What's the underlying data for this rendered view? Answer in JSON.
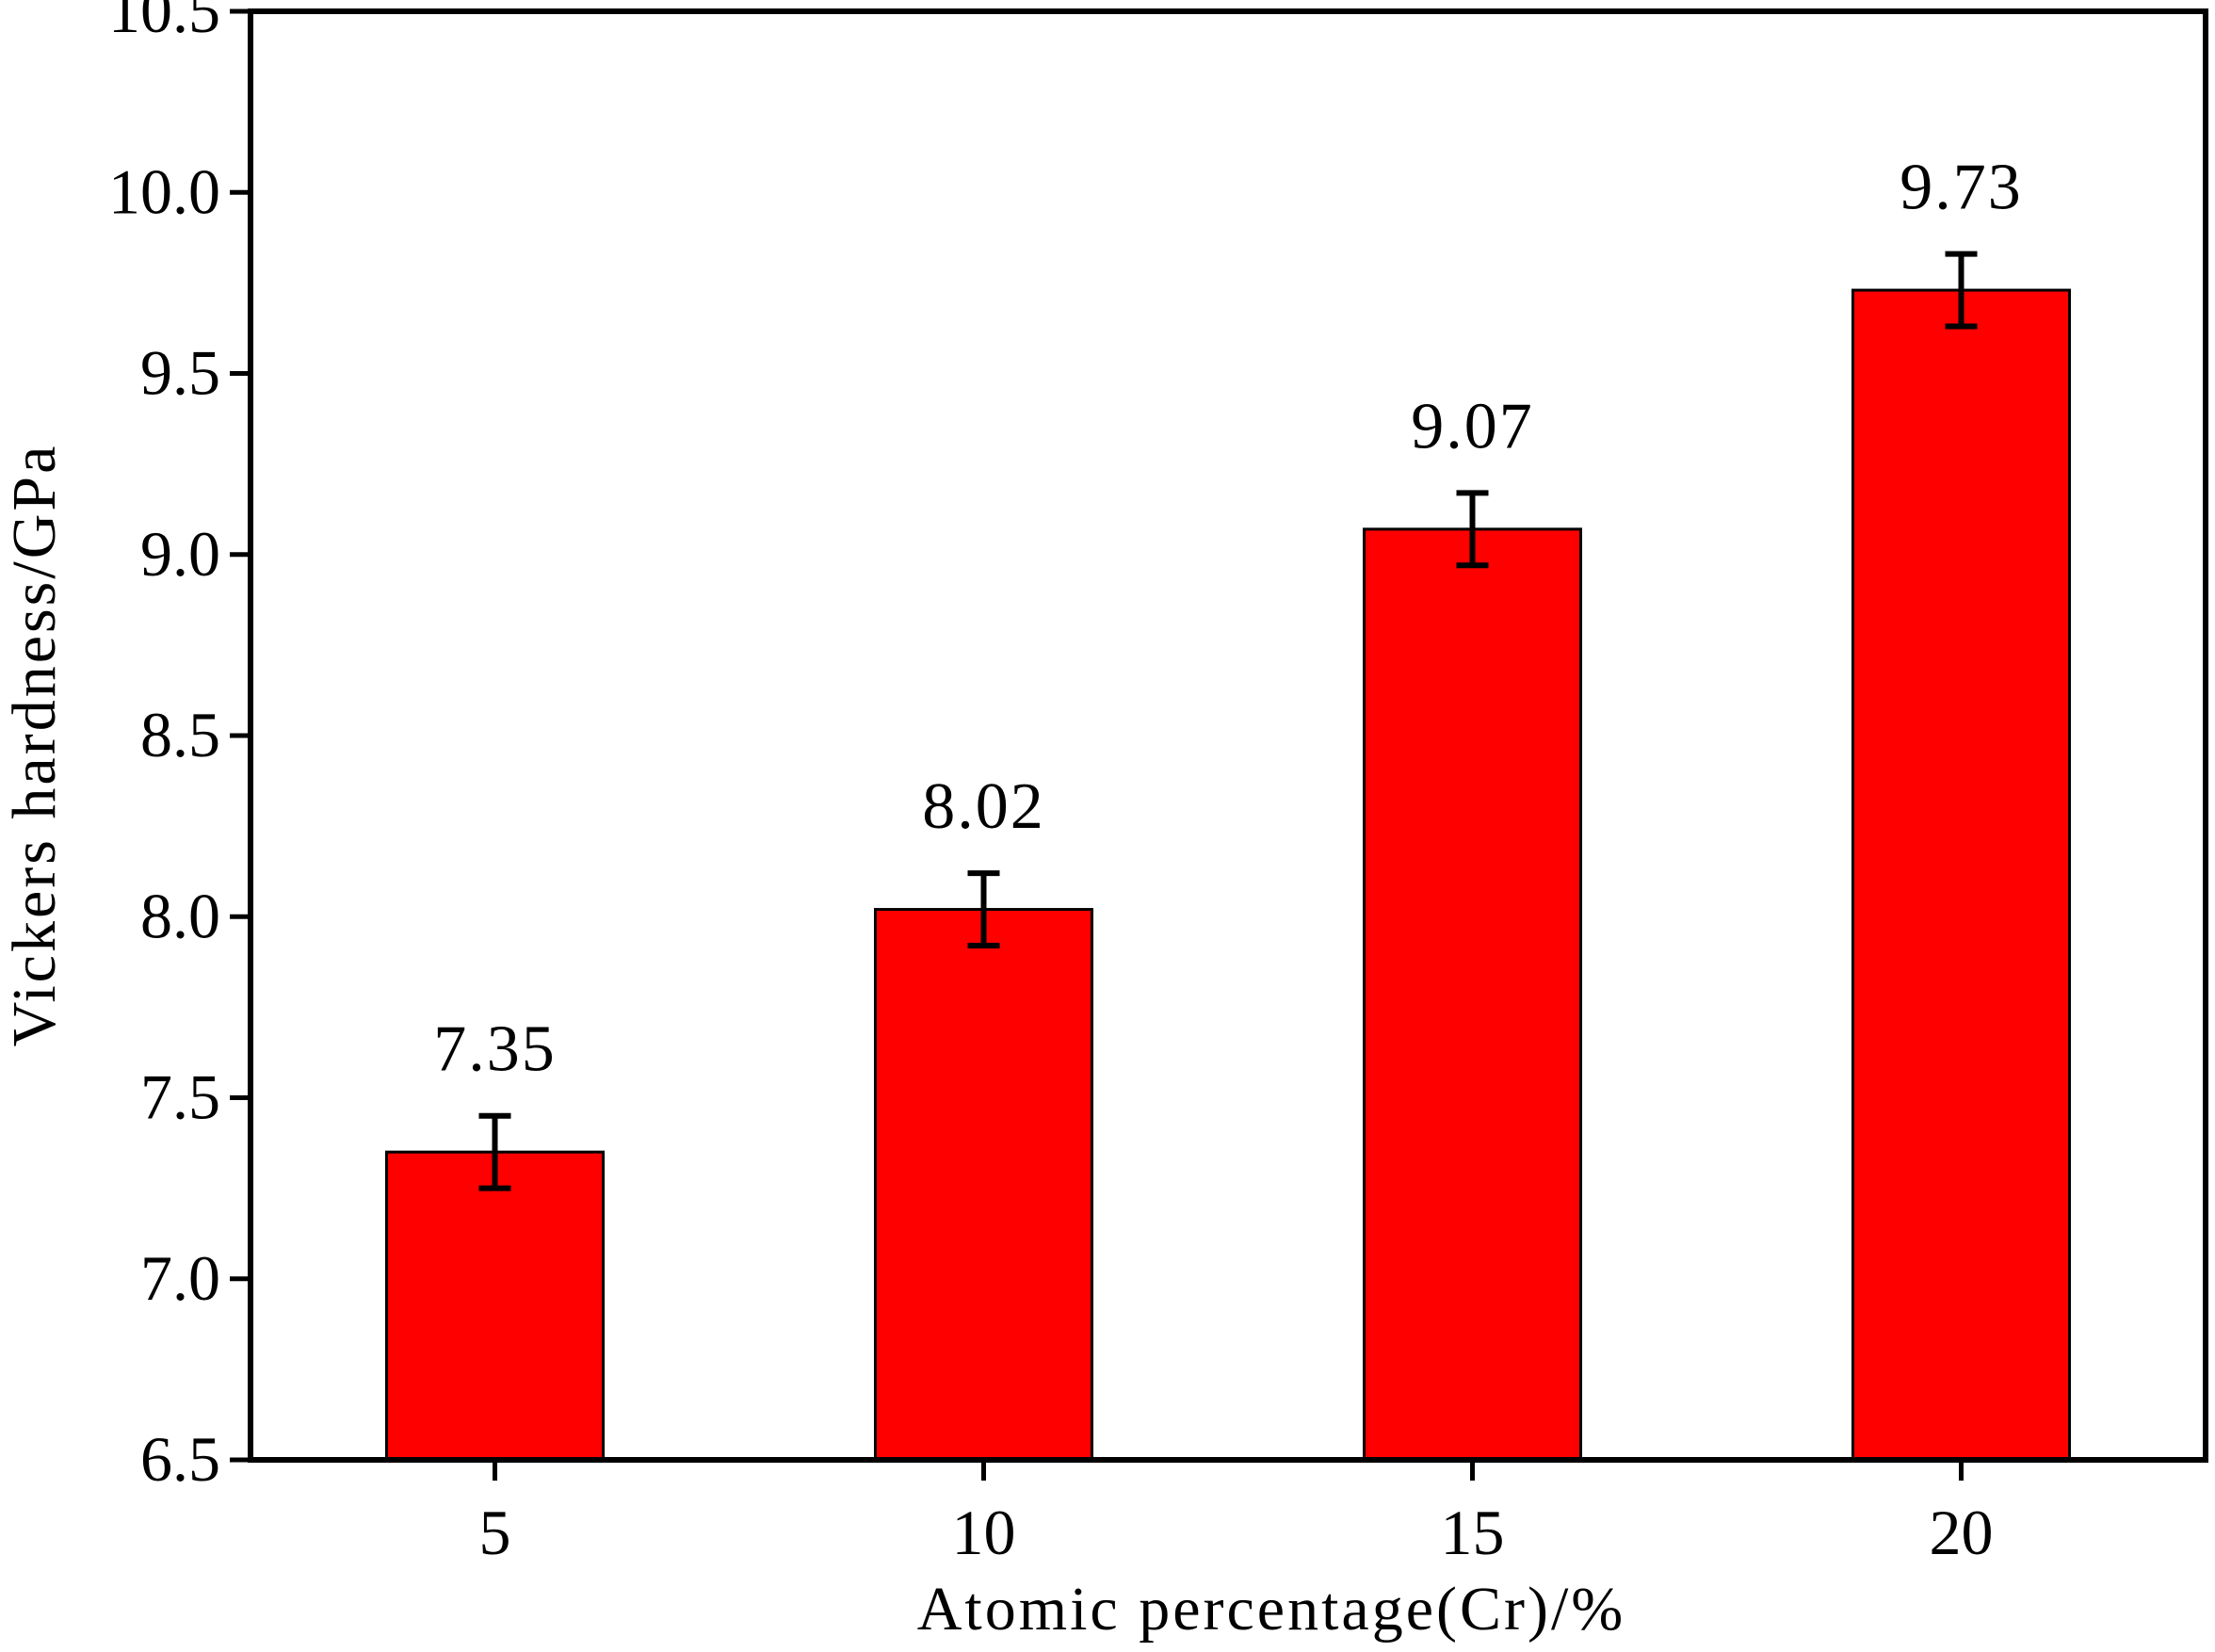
{
  "chart_data": {
    "type": "bar",
    "xlabel": "Atomic percentage(Cr)/%",
    "ylabel": "Vickers hardness/GPa",
    "categories": [
      "5",
      "10",
      "15",
      "20"
    ],
    "values": [
      7.35,
      8.02,
      9.07,
      9.73
    ],
    "value_labels": [
      "7.35",
      "8.02",
      "9.07",
      "9.73"
    ],
    "error": [
      0.1,
      0.1,
      0.1,
      0.1
    ],
    "ylim": [
      6.5,
      10.5
    ],
    "yticks": [
      6.5,
      7.0,
      7.5,
      8.0,
      8.5,
      9.0,
      9.5,
      10.0,
      10.5
    ],
    "ytick_labels": [
      "6.5",
      "7.0",
      "7.5",
      "8.0",
      "8.5",
      "9.0",
      "9.5",
      "10.0",
      "10.5"
    ],
    "grid": false,
    "legend": "none",
    "colors": {
      "bar_fill": "#ff0000",
      "bar_edge": "#000000",
      "error_bar": "#000000",
      "axis": "#000000"
    }
  }
}
